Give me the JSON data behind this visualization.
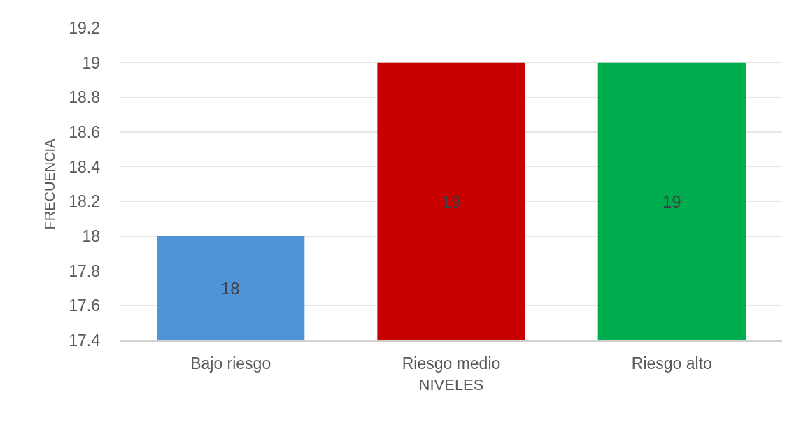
{
  "chart_data": {
    "type": "bar",
    "xlabel": "NIVELES",
    "ylabel": "FRECUENCIA",
    "categories": [
      "Bajo riesgo",
      "Riesgo medio",
      "Riesgo alto"
    ],
    "values": [
      18,
      19,
      19
    ],
    "colors": [
      "#4f93d8",
      "#c80000",
      "#00ad4e"
    ],
    "ylim": [
      17.4,
      19.2
    ],
    "yticks": [
      17.4,
      17.6,
      17.8,
      18,
      18.2,
      18.4,
      18.6,
      18.8,
      19,
      19.2
    ],
    "grid": "y",
    "data_labels": true
  }
}
